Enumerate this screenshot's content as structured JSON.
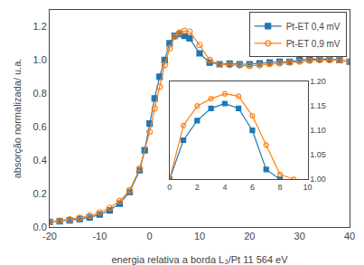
{
  "chart_data": [
    {
      "type": "line",
      "xlabel": "energia relativa a borda L₃/Pt 11 564 eV",
      "ylabel": "absorção normalizada/ u.a.",
      "xlim": [
        -20,
        40
      ],
      "ylim": [
        0.0,
        1.3
      ],
      "xticks": [
        -20,
        -10,
        0,
        10,
        20,
        30,
        40
      ],
      "yticks": [
        {
          "value": 0.0,
          "label": "0.0"
        },
        0.2,
        0.4,
        0.6,
        0.8,
        {
          "value": 1.0,
          "label": "1.0"
        },
        1.2
      ],
      "grid": false,
      "legend": "upper right",
      "series": [
        {
          "name": "Pt-ET 0,4 mV",
          "marker": "square",
          "x": [
            -20,
            -18,
            -16,
            -14,
            -12,
            -10,
            -8,
            -6,
            -4,
            -2,
            -1,
            0,
            1,
            2,
            3,
            4,
            5,
            6,
            7,
            8,
            10,
            12,
            14,
            16,
            18,
            20,
            22,
            24,
            26,
            28,
            30,
            32,
            34,
            36,
            38,
            40
          ],
          "values": [
            0.03,
            0.035,
            0.04,
            0.048,
            0.058,
            0.075,
            0.1,
            0.14,
            0.21,
            0.34,
            0.46,
            0.62,
            0.77,
            0.9,
            1.0,
            1.1,
            1.145,
            1.155,
            1.145,
            1.13,
            1.04,
            0.985,
            0.975,
            0.978,
            0.975,
            0.975,
            0.98,
            0.985,
            0.99,
            0.99,
            1.0,
            1.005,
            1.005,
            1.005,
            1.0,
            0.99
          ]
        },
        {
          "name": "Pt-ET 0,9 mV",
          "marker": "circle-open",
          "x": [
            -20,
            -18,
            -16,
            -14,
            -12,
            -10,
            -8,
            -6,
            -4,
            -2,
            0,
            1,
            2,
            3,
            4,
            5,
            6,
            7,
            8,
            10,
            12,
            14,
            16,
            18,
            20,
            22,
            24,
            26,
            28,
            30,
            32,
            34,
            36,
            38,
            40
          ],
          "values": [
            0.03,
            0.038,
            0.045,
            0.055,
            0.068,
            0.088,
            0.115,
            0.155,
            0.22,
            0.35,
            0.57,
            0.71,
            0.84,
            0.97,
            1.07,
            1.14,
            1.165,
            1.175,
            1.17,
            1.09,
            1.0,
            0.975,
            0.97,
            0.968,
            0.965,
            0.968,
            0.975,
            0.98,
            0.985,
            0.99,
            0.995,
            1.0,
            1.0,
            1.0,
            0.99
          ]
        }
      ]
    },
    {
      "type": "line",
      "xlim": [
        0,
        10
      ],
      "ylim": [
        1.0,
        1.2
      ],
      "xticks": [
        0,
        2,
        4,
        6,
        8,
        10
      ],
      "yticks": [
        {
          "value": 1.0,
          "label": "1.00"
        },
        1.05,
        {
          "value": 1.1,
          "label": "1.10"
        },
        1.15,
        {
          "value": 1.2,
          "label": "1.20"
        }
      ],
      "grid": false,
      "series": [
        {
          "marker": "square",
          "x": [
            0,
            1,
            2,
            3,
            4,
            5,
            6,
            7,
            8
          ],
          "values": [
            1.0,
            1.08,
            1.12,
            1.145,
            1.155,
            1.145,
            1.1,
            1.02,
            1.0
          ]
        },
        {
          "marker": "circle-open",
          "x": [
            0,
            1,
            2,
            3,
            4,
            5,
            6,
            7,
            8,
            9
          ],
          "values": [
            1.0,
            1.11,
            1.15,
            1.165,
            1.175,
            1.17,
            1.13,
            1.07,
            1.01,
            1.0
          ]
        }
      ]
    }
  ]
}
